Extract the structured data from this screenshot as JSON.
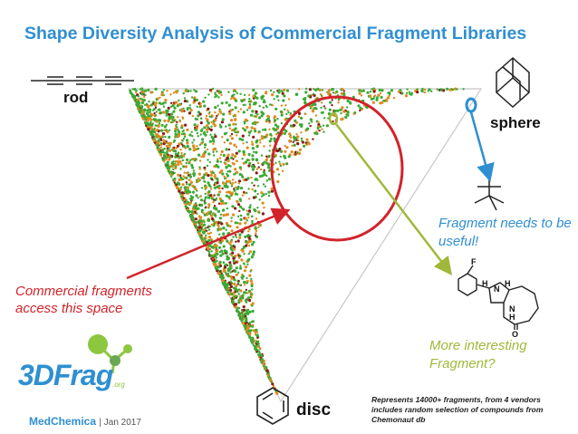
{
  "slide": {
    "title": "Shape Diversity Analysis of Commercial Fragment Libraries",
    "footer_brand": "MedChemica",
    "footer_date": "| Jan 2017",
    "logo_text": "3DFrag",
    "logo_suffix": ".org"
  },
  "annotations": {
    "commercial": "Commercial fragments access this space",
    "useful": "Fragment needs to be useful!",
    "interesting": "More interesting Fragment?",
    "footnote": "Represents 14000+ fragments, from 4 vendors includes random selection of compounds from Chemonaut db",
    "structure_labels": {
      "f": "F",
      "h1": "H",
      "n1": "N",
      "h2": "H",
      "n2": "N",
      "h3": "H",
      "o": "O"
    }
  },
  "colors": {
    "title": "#2f8fd1",
    "commercial": "#d2232a",
    "useful": "#2f8fd1",
    "interesting": "#9fb83a",
    "points": [
      "#3aaa35",
      "#e08a1e",
      "#8b1a1a"
    ]
  },
  "icons": [
    "rod-icon",
    "adamantane-icon",
    "benzene-icon",
    "tetrahedral-icon",
    "fragment-structure-icon",
    "3dfrag-logo-icon"
  ],
  "chart_data": {
    "type": "scatter",
    "subtype": "principal moments of inertia (PMI) triangle",
    "vertices": {
      "top_left": "rod",
      "top_right": "sphere",
      "bottom": "disc"
    },
    "series_colors": [
      "green",
      "orange",
      "dark red"
    ],
    "density_note": "points concentrated along the rod–disc edge, thinning toward the sphere vertex",
    "highlights": [
      {
        "kind": "circle",
        "color": "red",
        "note": "dense region near top-center"
      },
      {
        "kind": "circle",
        "color": "blue",
        "note": "near sphere vertex"
      },
      {
        "kind": "circle",
        "color": "yellow-green",
        "note": "inside red circle"
      }
    ]
  }
}
